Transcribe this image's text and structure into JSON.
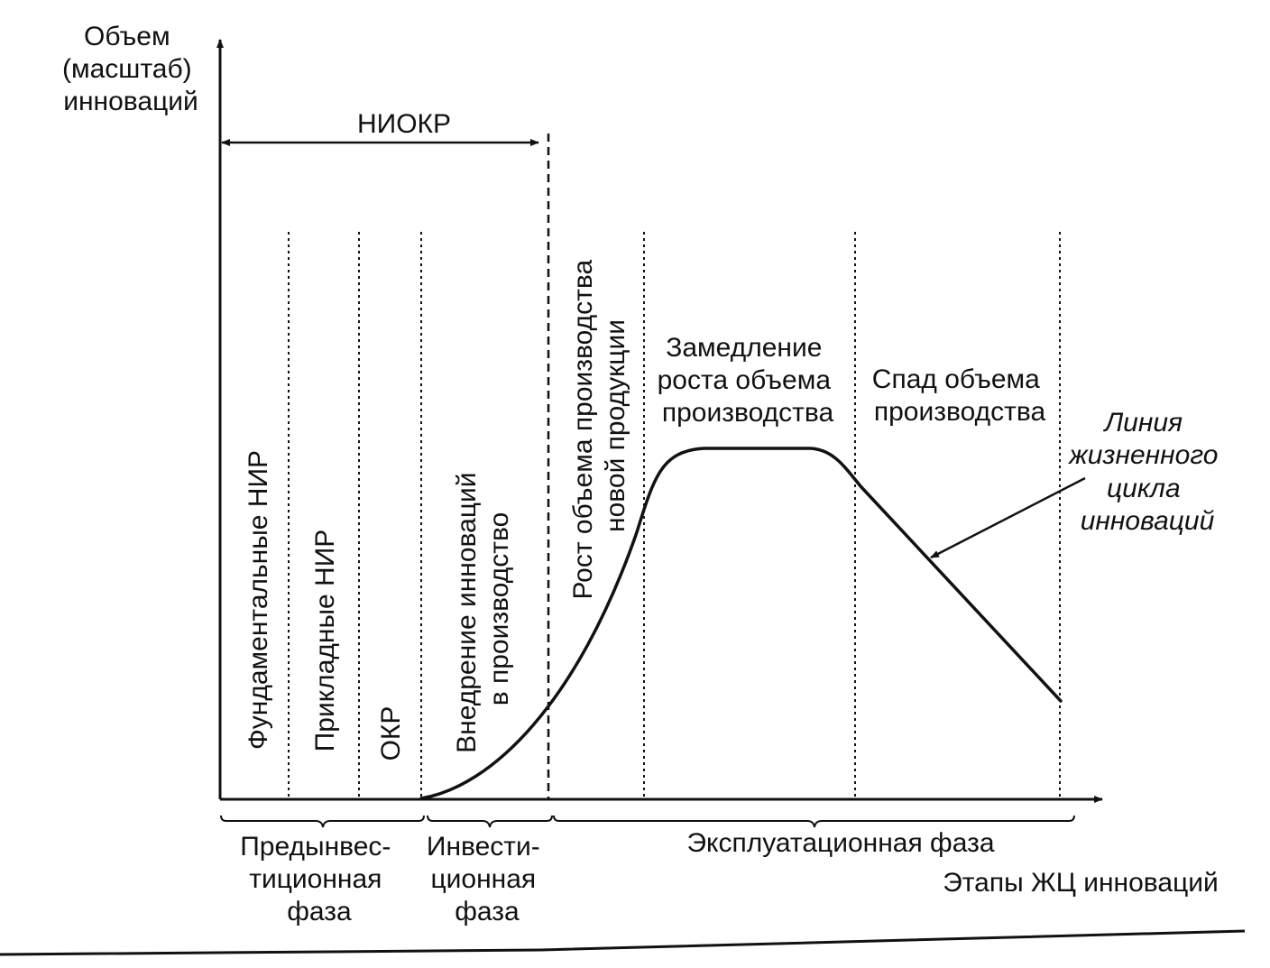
{
  "axes": {
    "y_label": [
      "Объем",
      "(масштаб)",
      "инноваций"
    ],
    "x_label": "Этапы ЖЦ инноваций"
  },
  "niokr_label": "НИОКР",
  "stages": [
    {
      "label": "Фундаментальные НИР",
      "lines": [
        "Фундаментальные НИР"
      ]
    },
    {
      "label": "Прикладные НИР",
      "lines": [
        "Прикладные НИР"
      ]
    },
    {
      "label": "ОКР",
      "lines": [
        "ОКР"
      ]
    },
    {
      "label": "Внедрение инноваций в производство",
      "lines": [
        "Внедрение инноваций",
        "в производство"
      ]
    },
    {
      "label": "Рост объема производства новой продукции",
      "lines": [
        "Рост объема производства",
        "новой продукции"
      ]
    },
    {
      "label": "Замедление роста объема производства",
      "lines": [
        "Замедление",
        "роста объема",
        "производства"
      ]
    },
    {
      "label": "Спад объема производства",
      "lines": [
        "Спад объема",
        "производства"
      ]
    }
  ],
  "phases": [
    {
      "label": "Предынвестиционная фаза",
      "lines": [
        "Предынвес-",
        "тиционная",
        "фаза"
      ]
    },
    {
      "label": "Инвестиционная фаза",
      "lines": [
        "Инвести-",
        "ционная",
        "фаза"
      ]
    },
    {
      "label": "Эксплуатационная фаза",
      "lines": [
        "Эксплуатационная фаза"
      ]
    }
  ],
  "curve_annotation": [
    "Линия",
    "жизненного",
    "цикла",
    "инноваций"
  ],
  "colors": {
    "ink": "#111111",
    "background": "#ffffff"
  }
}
